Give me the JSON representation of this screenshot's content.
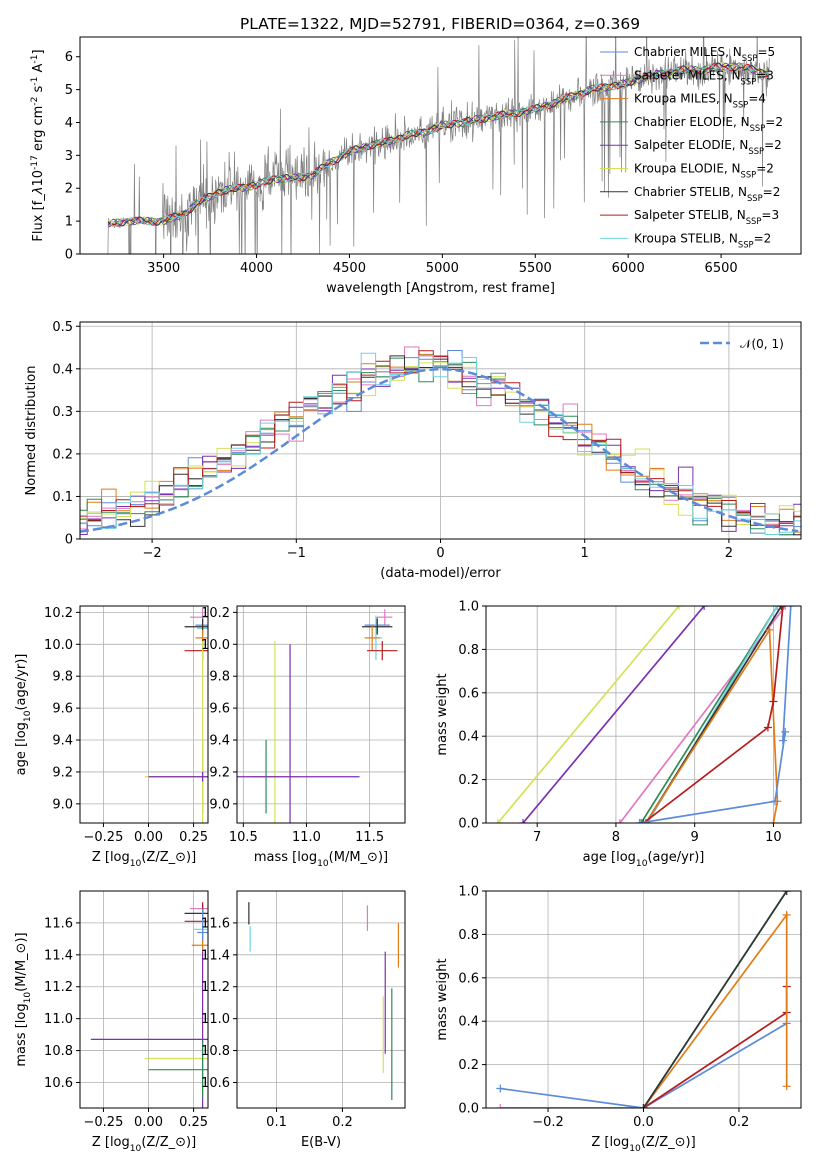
{
  "figure_title": "PLATE=1322, MJD=52791, FIBERID=0364, z=0.369",
  "colors": {
    "chabrier_miles": "#5b8bd9",
    "salpeter_miles": "#e377c2",
    "kroupa_miles": "#e07b1a",
    "chabrier_elodie": "#2e8b57",
    "salpeter_elodie": "#7b2fb5",
    "kroupa_elodie": "#d4e157",
    "chabrier_stelib": "#333333",
    "salpeter_stelib": "#b71c1c",
    "kroupa_stelib": "#6fd3e0",
    "data_spectrum": "#808080",
    "normal_curve": "#5b8bd9",
    "grid": "#b0b0b0"
  },
  "chart_data": [
    {
      "id": "spectrum",
      "type": "line",
      "xlabel": "wavelength [Angstrom, rest frame]",
      "ylabel": "Flux [f$_\\lambda$10$^{-17}$ erg cm$^{-2}$ s$^{-1}$ A$^{-1}$]",
      "xlim": [
        3050,
        6930
      ],
      "ylim": [
        0,
        6.6
      ],
      "xticks": [
        3500,
        4000,
        4500,
        5000,
        5500,
        6000,
        6500
      ],
      "yticks": [
        0,
        1,
        2,
        3,
        4,
        5,
        6
      ],
      "grid": false,
      "legend_position": "top-right",
      "legend": [
        {
          "label": "Chabrier MILES, N$_{SSP}$=5",
          "key": "chabrier_miles"
        },
        {
          "label": "Salpeter MILES, N$_{SSP}$=3",
          "key": "salpeter_miles"
        },
        {
          "label": "Kroupa MILES, N$_{SSP}$=4",
          "key": "kroupa_miles"
        },
        {
          "label": "Chabrier ELODIE, N$_{SSP}$=2",
          "key": "chabrier_elodie"
        },
        {
          "label": "Salpeter ELODIE, N$_{SSP}$=2",
          "key": "salpeter_elodie"
        },
        {
          "label": "Kroupa ELODIE, N$_{SSP}$=2",
          "key": "kroupa_elodie"
        },
        {
          "label": "Chabrier STELIB, N$_{SSP}$=2",
          "key": "chabrier_stelib"
        },
        {
          "label": "Salpeter STELIB, N$_{SSP}$=3",
          "key": "salpeter_stelib"
        },
        {
          "label": "Kroupa STELIB, N$_{SSP}$=2",
          "key": "kroupa_stelib"
        }
      ],
      "continuum_x": [
        3200,
        3300,
        3400,
        3500,
        3600,
        3700,
        3800,
        3900,
        4000,
        4100,
        4200,
        4300,
        4400,
        4500,
        4600,
        4700,
        4800,
        4900,
        5000,
        5100,
        5200,
        5300,
        5400,
        5500,
        5600,
        5700,
        5800,
        5900,
        6000,
        6100,
        6200,
        6300,
        6400,
        6500,
        6600,
        6750
      ],
      "continuum_y": [
        0.9,
        1.0,
        1.0,
        1.0,
        1.2,
        1.6,
        1.9,
        2.0,
        2.1,
        2.3,
        2.3,
        2.4,
        2.8,
        3.1,
        3.3,
        3.4,
        3.6,
        3.7,
        3.9,
        4.0,
        4.1,
        4.2,
        4.3,
        4.4,
        4.6,
        4.8,
        5.0,
        5.1,
        5.2,
        5.4,
        5.5,
        5.6,
        5.6,
        5.7,
        5.7,
        5.5
      ],
      "data_x_range": [
        3200,
        6760
      ],
      "flux_start": 3200
    },
    {
      "id": "residuals",
      "type": "line",
      "xlabel": "(data-model)/error",
      "ylabel": "Normed distribution",
      "xlim": [
        -2.5,
        2.5
      ],
      "ylim": [
        0,
        0.51
      ],
      "xticks": [
        -2,
        -1,
        0,
        1,
        2
      ],
      "yticks": [
        0.0,
        0.1,
        0.2,
        0.3,
        0.4,
        0.5
      ],
      "grid": true,
      "legend_position": "top-right",
      "legend": [
        {
          "label": "𝒩(0, 1)",
          "key": "normal_curve"
        }
      ],
      "bin_width": 0.1
    },
    {
      "id": "age_vs_Z",
      "type": "scatter",
      "xlabel": "Z [log$_{10}$(Z/Z$_\\odot$)]",
      "ylabel": "age  [log$_{10}$(age/yr)]",
      "xlim": [
        -0.38,
        0.33
      ],
      "ylim": [
        8.88,
        10.24
      ],
      "xticks": [
        -0.25,
        0.0,
        0.25
      ],
      "yticks": [
        9.0,
        9.2,
        9.4,
        9.6,
        9.8,
        10.0,
        10.2
      ],
      "grid": true,
      "points": [
        {
          "key": "salpeter_miles",
          "x": 0.3,
          "y": 10.17,
          "xerr": 0.07,
          "yerr": 0.05
        },
        {
          "key": "chabrier_miles",
          "x": 0.3,
          "y": 10.12,
          "xerr": 0.04,
          "yerr": 0.05
        },
        {
          "key": "kroupa_stelib",
          "x": 0.3,
          "y": 10.1,
          "xerr": 0.03,
          "yerr": 0.05
        },
        {
          "key": "chabrier_stelib",
          "x": 0.3,
          "y": 10.11,
          "xerr": 0.1,
          "yerr": 0.05
        },
        {
          "key": "kroupa_miles",
          "x": 0.3,
          "y": 10.04,
          "xerr": 0.04,
          "yerr": 0.05
        },
        {
          "key": "salpeter_stelib",
          "x": 0.3,
          "y": 9.96,
          "xerr": 0.1,
          "yerr": 0.06
        },
        {
          "key": "chabrier_elodie",
          "x": 0.3,
          "y": 9.17,
          "xerr": 0.3,
          "yerr": 0.23
        },
        {
          "key": "kroupa_elodie",
          "x": 0.3,
          "y": 9.17,
          "xerr": 0.32,
          "yerr": 0.85
        },
        {
          "key": "salpeter_elodie",
          "x": 0.3,
          "y": 9.17,
          "xerr": 0.3,
          "yerr": 0.03
        }
      ]
    },
    {
      "id": "age_vs_mass",
      "type": "scatter",
      "xlabel": "mass [log$_{10}$(M/M$_\\odot$)]",
      "ylabel": "",
      "xlim": [
        10.45,
        11.78
      ],
      "ylim": [
        8.88,
        10.24
      ],
      "xticks": [
        10.5,
        11.0,
        11.5
      ],
      "yticks": [
        9.0,
        9.2,
        9.4,
        9.6,
        9.8,
        10.0,
        10.2
      ],
      "grid": true,
      "points": [
        {
          "key": "salpeter_miles",
          "x": 11.62,
          "y": 10.17,
          "xerr": 0.06,
          "yerr": 0.05
        },
        {
          "key": "chabrier_miles",
          "x": 11.56,
          "y": 10.12,
          "xerr": 0.1,
          "yerr": 0.05
        },
        {
          "key": "kroupa_stelib",
          "x": 11.55,
          "y": 10.04,
          "xerr": 0.05,
          "yerr": 0.14
        },
        {
          "key": "chabrier_stelib",
          "x": 11.56,
          "y": 10.11,
          "xerr": 0.12,
          "yerr": 0.05
        },
        {
          "key": "kroupa_miles",
          "x": 11.52,
          "y": 10.04,
          "xerr": 0.06,
          "yerr": 0.08
        },
        {
          "key": "salpeter_stelib",
          "x": 11.6,
          "y": 9.96,
          "xerr": 0.12,
          "yerr": 0.06
        },
        {
          "key": "chabrier_elodie",
          "x": 10.68,
          "y": 9.17,
          "xerr": 0.1,
          "yerr": 0.23
        },
        {
          "key": "kroupa_elodie",
          "x": 10.75,
          "y": 9.17,
          "xerr": 0.2,
          "yerr": 0.85
        },
        {
          "key": "salpeter_elodie",
          "x": 10.87,
          "y": 9.17,
          "xerr": 0.55,
          "yerr": 0.83
        }
      ]
    },
    {
      "id": "mass_weight_vs_age",
      "type": "line",
      "xlabel": "age  [log$_{10}$(age/yr)]",
      "ylabel": "mass weight",
      "xlim": [
        6.35,
        10.35
      ],
      "ylim": [
        0,
        1.0
      ],
      "xticks": [
        7,
        8,
        9,
        10
      ],
      "yticks": [
        0.0,
        0.2,
        0.4,
        0.6,
        0.8,
        1.0
      ],
      "grid": true,
      "series": [
        {
          "key": "kroupa_elodie",
          "x": [
            6.5,
            8.8
          ],
          "y": [
            0.0,
            1.0
          ]
        },
        {
          "key": "salpeter_elodie",
          "x": [
            6.82,
            9.12
          ],
          "y": [
            0.0,
            1.0
          ]
        },
        {
          "key": "salpeter_miles",
          "x": [
            8.05,
            10.15
          ],
          "y": [
            0.0,
            1.0
          ]
        },
        {
          "key": "chabrier_elodie",
          "x": [
            8.32,
            10.05
          ],
          "y": [
            0.0,
            1.0
          ]
        },
        {
          "key": "kroupa_stelib",
          "x": [
            8.4,
            10.05
          ],
          "y": [
            0.0,
            1.0
          ]
        },
        {
          "key": "chabrier_stelib",
          "x": [
            8.38,
            10.1
          ],
          "y": [
            0.0,
            1.0
          ]
        },
        {
          "key": "kroupa_miles",
          "x": [
            8.38,
            9.95,
            10.05,
            10.0
          ],
          "y": [
            0.0,
            0.89,
            0.1,
            0.0
          ]
        },
        {
          "key": "salpeter_stelib",
          "x": [
            8.35,
            9.93,
            10.0,
            10.12
          ],
          "y": [
            0.0,
            0.44,
            0.56,
            1.0
          ]
        },
        {
          "key": "chabrier_miles",
          "x": [
            8.3,
            10.02,
            10.15,
            10.12,
            10.22
          ],
          "y": [
            0.0,
            0.1,
            0.42,
            0.38,
            1.0
          ]
        }
      ]
    },
    {
      "id": "mass_vs_Z",
      "type": "scatter",
      "xlabel": "Z [log$_{10}$(Z/Z$_\\odot$)]",
      "ylabel": "mass [log$_{10}$(M/M$_\\odot$)]",
      "xlim": [
        -0.38,
        0.33
      ],
      "ylim": [
        10.44,
        11.8
      ],
      "xticks": [
        -0.25,
        0.0,
        0.25
      ],
      "yticks": [
        10.6,
        10.8,
        11.0,
        11.2,
        11.4,
        11.6
      ],
      "grid": true,
      "points": [
        {
          "key": "salpeter_miles",
          "x": 0.3,
          "y": 11.69,
          "xerr": 0.07,
          "yerr": 0.03
        },
        {
          "key": "chabrier_stelib",
          "x": 0.3,
          "y": 11.66,
          "xerr": 0.1,
          "yerr": 0.05
        },
        {
          "key": "salpeter_stelib",
          "x": 0.3,
          "y": 11.61,
          "xerr": 0.1,
          "yerr": 0.12
        },
        {
          "key": "kroupa_stelib",
          "x": 0.3,
          "y": 11.56,
          "xerr": 0.05,
          "yerr": 0.05
        },
        {
          "key": "chabrier_miles",
          "x": 0.3,
          "y": 11.54,
          "xerr": 0.03,
          "yerr": 0.15
        },
        {
          "key": "kroupa_miles",
          "x": 0.3,
          "y": 11.46,
          "xerr": 0.06,
          "yerr": 0.03
        },
        {
          "key": "salpeter_elodie",
          "x": 0.3,
          "y": 10.87,
          "xerr": 0.62,
          "yerr": 0.55
        },
        {
          "key": "kroupa_elodie",
          "x": 0.3,
          "y": 10.75,
          "xerr": 0.32,
          "yerr": 0.06
        },
        {
          "key": "chabrier_elodie",
          "x": 0.3,
          "y": 10.68,
          "xerr": 0.3,
          "yerr": 0.18
        }
      ]
    },
    {
      "id": "mass_vs_ebv",
      "type": "scatter",
      "xlabel": "E(B-V)",
      "ylabel": "",
      "xlim": [
        0.04,
        0.295
      ],
      "ylim": [
        10.44,
        11.8
      ],
      "xticks": [
        0.1,
        0.2
      ],
      "yticks": [
        10.6,
        10.8,
        11.0,
        11.2,
        11.4,
        11.6
      ],
      "grid": true,
      "points": [
        {
          "key": "chabrier_stelib",
          "x": 0.058,
          "y": 11.66,
          "xerr": 0.0,
          "yerr": 0.07
        },
        {
          "key": "kroupa_stelib",
          "x": 0.06,
          "y": 11.5,
          "xerr": 0.0,
          "yerr": 0.08
        },
        {
          "key": "salpeter_miles",
          "x": 0.238,
          "y": 11.63,
          "xerr": 0.0,
          "yerr": 0.08
        },
        {
          "key": "kroupa_miles",
          "x": 0.285,
          "y": 11.46,
          "xerr": 0.0,
          "yerr": 0.14
        },
        {
          "key": "salpeter_elodie",
          "x": 0.265,
          "y": 11.1,
          "xerr": 0.0,
          "yerr": 0.32
        },
        {
          "key": "kroupa_elodie",
          "x": 0.262,
          "y": 10.9,
          "xerr": 0.0,
          "yerr": 0.24
        },
        {
          "key": "chabrier_elodie",
          "x": 0.275,
          "y": 10.84,
          "xerr": 0.0,
          "yerr": 0.35
        }
      ]
    },
    {
      "id": "mass_weight_vs_Z",
      "type": "line",
      "xlabel": "Z [log$_{10}$(Z/Z$_\\odot$)]",
      "ylabel": "mass weight",
      "xlim": [
        -0.33,
        0.33
      ],
      "ylim": [
        0,
        1.0
      ],
      "xticks": [
        -0.2,
        0.0,
        0.2
      ],
      "yticks": [
        0.0,
        0.2,
        0.4,
        0.6,
        0.8,
        1.0
      ],
      "grid": true,
      "series": [
        {
          "key": "chabrier_miles",
          "x": [
            -0.3,
            0.0,
            0.3
          ],
          "y": [
            0.09,
            0.0,
            0.39
          ]
        },
        {
          "key": "salpeter_miles",
          "x": [
            -0.3,
            0.0
          ],
          "y": [
            0.0,
            0.0
          ]
        },
        {
          "key": "salpeter_stelib",
          "x": [
            0.0,
            0.3,
            0.3
          ],
          "y": [
            0.0,
            0.44,
            0.56
          ]
        },
        {
          "key": "kroupa_miles",
          "x": [
            0.0,
            0.3,
            0.3
          ],
          "y": [
            0.0,
            0.89,
            0.1
          ]
        },
        {
          "key": "chabrier_elodie",
          "x": [
            0.0,
            0.3
          ],
          "y": [
            0.0,
            1.0
          ]
        },
        {
          "key": "kroupa_stelib",
          "x": [
            0.0,
            0.3
          ],
          "y": [
            0.0,
            1.0
          ]
        },
        {
          "key": "chabrier_stelib",
          "x": [
            0.0,
            0.3
          ],
          "y": [
            0.0,
            1.0
          ]
        }
      ]
    }
  ]
}
